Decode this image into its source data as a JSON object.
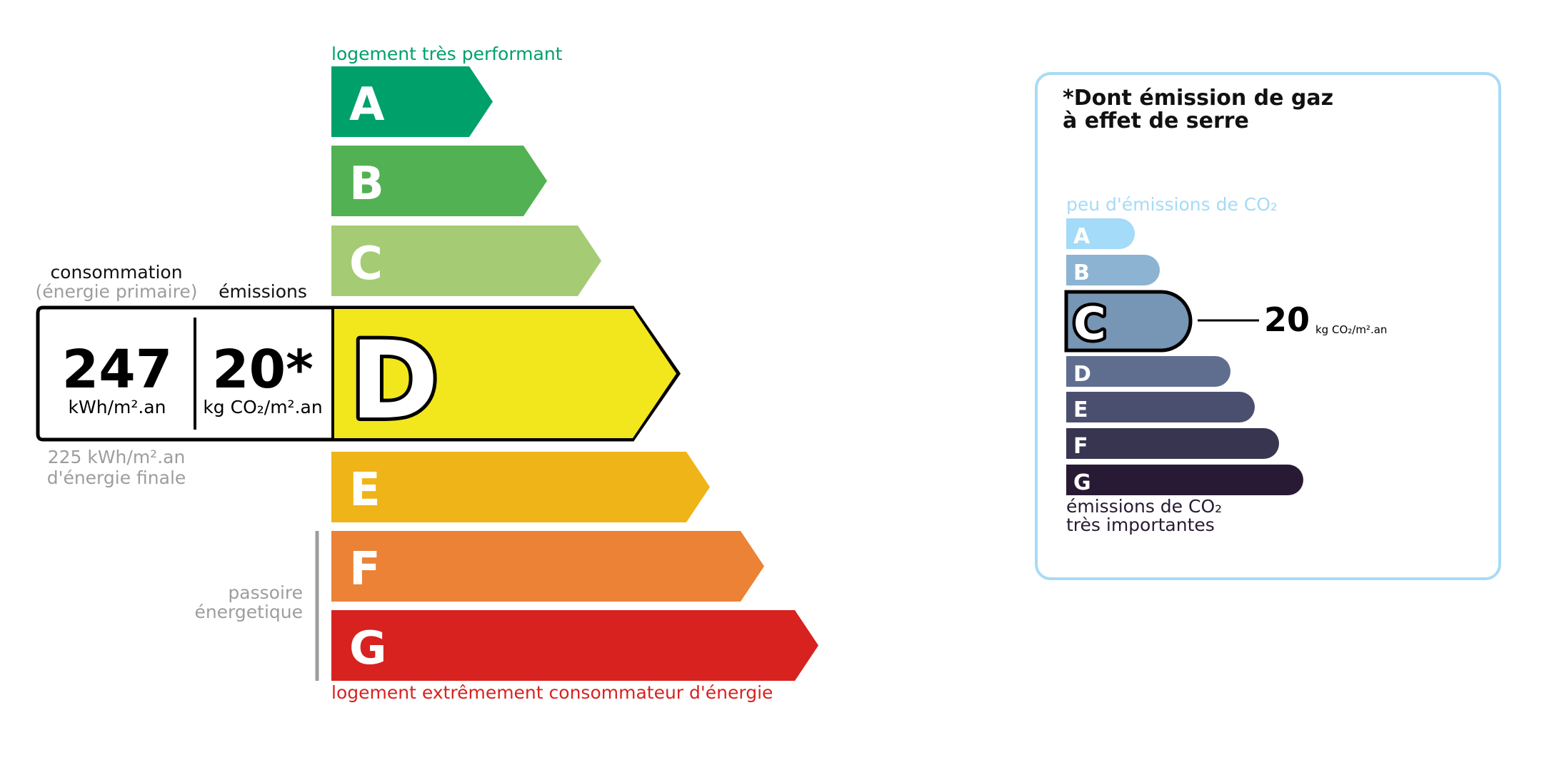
{
  "energy": {
    "top_label": "logement très performant",
    "bottom_label": "logement extrêmement consommateur d'énergie",
    "passoire_label": [
      "passoire",
      "énergetique"
    ],
    "classes": [
      {
        "letter": "A",
        "color": "#00a06b"
      },
      {
        "letter": "B",
        "color": "#52b153"
      },
      {
        "letter": "C",
        "color": "#a5cc74"
      },
      {
        "letter": "D",
        "color": "#f2e61c"
      },
      {
        "letter": "E",
        "color": "#efb418"
      },
      {
        "letter": "F",
        "color": "#eb8235"
      },
      {
        "letter": "G",
        "color": "#d7221f"
      }
    ],
    "current_class": "D",
    "consumption_header": "consommation",
    "consumption_sub": "(énergie primaire)",
    "emissions_header": "émissions",
    "consumption_value": "247",
    "consumption_unit": "kWh/m².an",
    "emissions_value": "20*",
    "emissions_unit": "kg CO₂/m².an",
    "final_energy_value": "225 kWh/m².an",
    "final_energy_label": "d'énergie finale",
    "top_label_color": "#00a06b",
    "bottom_label_color": "#d7221f"
  },
  "ghg": {
    "title_line1": "*Dont émission de gaz",
    "title_line2": "à effet de serre",
    "top_label": "peu d'émissions de CO₂",
    "bottom_label_line1": "émissions de CO₂",
    "bottom_label_line2": "très importantes",
    "classes": [
      {
        "letter": "A",
        "color": "#a4dbf8"
      },
      {
        "letter": "B",
        "color": "#8cb4d2"
      },
      {
        "letter": "C",
        "color": "#7795b4"
      },
      {
        "letter": "D",
        "color": "#5f6e8f"
      },
      {
        "letter": "E",
        "color": "#4b4f6f"
      },
      {
        "letter": "F",
        "color": "#383551"
      },
      {
        "letter": "G",
        "color": "#281a34"
      }
    ],
    "current_class": "C",
    "value": "20",
    "unit": "kg CO₂/m².an",
    "border_color": "#a8daf5"
  }
}
